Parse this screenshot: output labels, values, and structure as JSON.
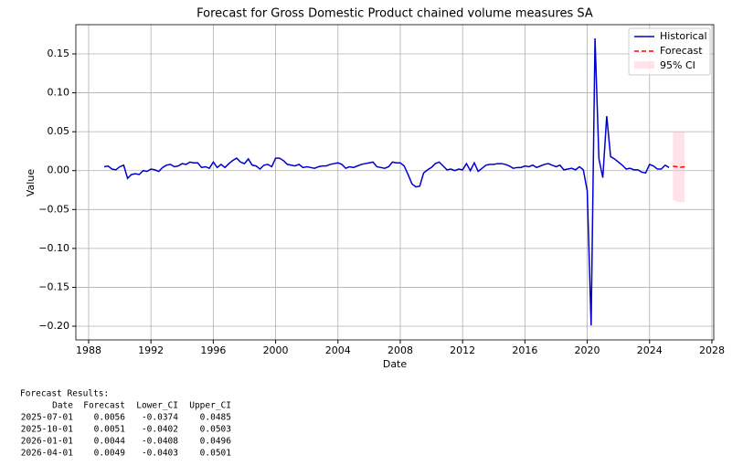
{
  "chart_data": {
    "type": "line",
    "title": "Forecast for Gross Domestic Product chained volume measures SA",
    "xlabel": "Date",
    "ylabel": "Value",
    "xlim": [
      1987.18,
      2028.12
    ],
    "xticks": [
      1988,
      1992,
      1996,
      2000,
      2004,
      2008,
      2012,
      2016,
      2020,
      2024,
      2028
    ],
    "ylim": [
      -0.2176,
      0.1876
    ],
    "yticks": [
      {
        "value": -0.2,
        "label": "−0.20"
      },
      {
        "value": -0.15,
        "label": "−0.15"
      },
      {
        "value": -0.1,
        "label": "−0.10"
      },
      {
        "value": -0.05,
        "label": "−0.05"
      },
      {
        "value": 0,
        "label": "0.00"
      },
      0.05,
      {
        "value": 0.1,
        "label": "0.10"
      },
      0.15
    ],
    "grid": true,
    "legend": "upper right",
    "series": [
      {
        "name": "Historical",
        "color": "#0000cd",
        "x": [
          1989,
          1989.25,
          1989.5,
          1989.75,
          1990,
          1990.25,
          1990.5,
          1990.75,
          1991,
          1991.25,
          1991.5,
          1991.75,
          1992,
          1992.25,
          1992.5,
          1992.75,
          1993,
          1993.25,
          1993.5,
          1993.75,
          1994,
          1994.25,
          1994.5,
          1994.75,
          1995,
          1995.25,
          1995.5,
          1995.75,
          1996,
          1996.25,
          1996.5,
          1996.75,
          1997,
          1997.25,
          1997.5,
          1997.75,
          1998,
          1998.25,
          1998.5,
          1998.75,
          1999,
          1999.25,
          1999.5,
          1999.75,
          2000,
          2000.25,
          2000.5,
          2000.75,
          2001,
          2001.25,
          2001.5,
          2001.75,
          2002,
          2002.25,
          2002.5,
          2002.75,
          2003,
          2003.25,
          2003.5,
          2003.75,
          2004,
          2004.25,
          2004.5,
          2004.75,
          2005,
          2005.25,
          2005.5,
          2005.75,
          2006,
          2006.25,
          2006.5,
          2006.75,
          2007,
          2007.25,
          2007.5,
          2007.75,
          2008,
          2008.25,
          2008.5,
          2008.75,
          2009,
          2009.25,
          2009.5,
          2009.75,
          2010,
          2010.25,
          2010.5,
          2010.75,
          2011,
          2011.25,
          2011.5,
          2011.75,
          2012,
          2012.25,
          2012.5,
          2012.75,
          2013,
          2013.25,
          2013.5,
          2013.75,
          2014,
          2014.25,
          2014.5,
          2014.75,
          2015,
          2015.25,
          2015.5,
          2015.75,
          2016,
          2016.25,
          2016.5,
          2016.75,
          2017,
          2017.25,
          2017.5,
          2017.75,
          2018,
          2018.25,
          2018.5,
          2018.75,
          2019,
          2019.25,
          2019.5,
          2019.75,
          2020,
          2020.25,
          2020.5,
          2020.75,
          2021,
          2021.25,
          2021.5,
          2021.75,
          2022,
          2022.25,
          2022.5,
          2022.75,
          2023,
          2023.25,
          2023.5,
          2023.75,
          2024,
          2024.25,
          2024.5,
          2024.75,
          2025,
          2025.25
        ],
        "values": [
          0.005,
          0.006,
          0.002,
          0.001,
          0.005,
          0.007,
          -0.01,
          -0.005,
          -0.004,
          -0.005,
          0.0,
          -0.001,
          0.002,
          0.001,
          -0.001,
          0.004,
          0.007,
          0.008,
          0.005,
          0.006,
          0.009,
          0.008,
          0.011,
          0.01,
          0.01,
          0.004,
          0.005,
          0.003,
          0.011,
          0.004,
          0.008,
          0.004,
          0.009,
          0.013,
          0.016,
          0.011,
          0.009,
          0.015,
          0.007,
          0.006,
          0.002,
          0.007,
          0.008,
          0.005,
          0.016,
          0.016,
          0.013,
          0.008,
          0.007,
          0.006,
          0.008,
          0.004,
          0.005,
          0.004,
          0.003,
          0.005,
          0.006,
          0.006,
          0.008,
          0.009,
          0.01,
          0.008,
          0.003,
          0.005,
          0.004,
          0.006,
          0.008,
          0.009,
          0.01,
          0.011,
          0.005,
          0.004,
          0.003,
          0.005,
          0.011,
          0.01,
          0.01,
          0.006,
          -0.005,
          -0.017,
          -0.021,
          -0.02,
          -0.003,
          0.001,
          0.004,
          0.009,
          0.011,
          0.006,
          0.001,
          0.002,
          0.0,
          0.002,
          0.001,
          0.009,
          0.0,
          0.01,
          -0.001,
          0.003,
          0.007,
          0.008,
          0.008,
          0.009,
          0.009,
          0.008,
          0.006,
          0.003,
          0.004,
          0.004,
          0.006,
          0.005,
          0.007,
          0.004,
          0.006,
          0.008,
          0.009,
          0.007,
          0.005,
          0.007,
          0.001,
          0.002,
          0.003,
          0.001,
          0.005,
          0.001,
          -0.026,
          -0.199,
          0.17,
          0.015,
          -0.009,
          0.07,
          0.018,
          0.015,
          0.011,
          0.007,
          0.002,
          0.003,
          0.001,
          0.001,
          -0.002,
          -0.003,
          0.008,
          0.006,
          0.002,
          0.002,
          0.007,
          0.004
        ]
      },
      {
        "name": "Forecast",
        "color": "#ff0000",
        "x": [
          2025.5,
          2025.75,
          2026,
          2026.25
        ],
        "values": [
          0.0056,
          0.0051,
          0.0044,
          0.0049
        ],
        "lower": [
          -0.0374,
          -0.0402,
          -0.0408,
          -0.0403
        ],
        "upper": [
          0.0485,
          0.0503,
          0.0496,
          0.0501
        ]
      }
    ],
    "ci": {
      "name": "95% CI",
      "color": "#ffc0cb"
    }
  },
  "table": {
    "title": "Forecast Results:",
    "columns": [
      "Date",
      "Forecast",
      "Lower_CI",
      "Upper_CI"
    ],
    "rows": [
      [
        "2025-07-01",
        "0.0056",
        "-0.0374",
        "0.0485"
      ],
      [
        "2025-10-01",
        "0.0051",
        "-0.0402",
        "0.0503"
      ],
      [
        "2026-01-01",
        "0.0044",
        "-0.0408",
        "0.0496"
      ],
      [
        "2026-04-01",
        "0.0049",
        "-0.0403",
        "0.0501"
      ]
    ]
  }
}
